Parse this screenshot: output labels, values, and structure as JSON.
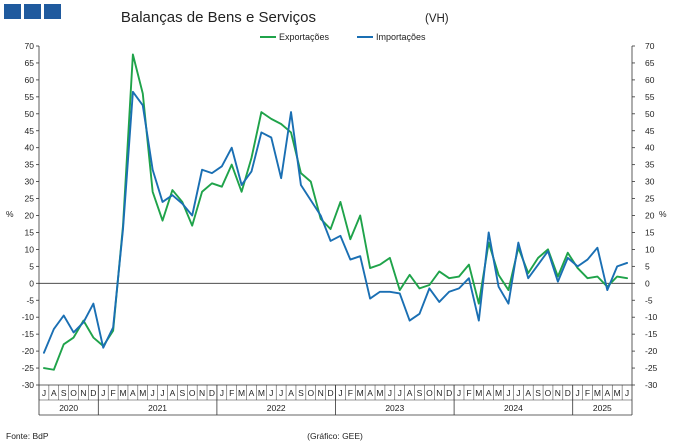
{
  "logo": {
    "color": "#1f5a9e"
  },
  "chart_data": {
    "type": "line",
    "title": "Balanças de Bens e Serviços",
    "subtitle": "(VH)",
    "ylabel_left": "%",
    "ylabel_right": "%",
    "ylim": [
      -30,
      70
    ],
    "yticks": [
      70,
      65,
      60,
      55,
      50,
      45,
      40,
      35,
      30,
      25,
      20,
      15,
      10,
      5,
      0,
      -5,
      -10,
      -15,
      -20,
      -25,
      -30
    ],
    "legend_position": "top",
    "grid": false,
    "months": [
      "J",
      "A",
      "S",
      "O",
      "N",
      "D",
      "J",
      "F",
      "M",
      "A",
      "M",
      "J",
      "J",
      "A",
      "S",
      "O",
      "N",
      "D",
      "J",
      "F",
      "M",
      "A",
      "M",
      "J",
      "J",
      "A",
      "S",
      "O",
      "N",
      "D",
      "J",
      "F",
      "M",
      "A",
      "M",
      "J",
      "J",
      "A",
      "S",
      "O",
      "N",
      "D",
      "J",
      "F",
      "M",
      "A",
      "M",
      "J",
      "J",
      "A",
      "S",
      "O",
      "N",
      "D",
      "J",
      "F",
      "M",
      "A",
      "M",
      "J"
    ],
    "years": [
      {
        "label": "2020",
        "start": 0,
        "count": 6
      },
      {
        "label": "2021",
        "start": 6,
        "count": 12
      },
      {
        "label": "2022",
        "start": 18,
        "count": 12
      },
      {
        "label": "2023",
        "start": 30,
        "count": 12
      },
      {
        "label": "2024",
        "start": 42,
        "count": 12
      },
      {
        "label": "2025",
        "start": 54,
        "count": 6
      }
    ],
    "x": [
      "2020-07",
      "2020-08",
      "2020-09",
      "2020-10",
      "2020-11",
      "2020-12",
      "2021-01",
      "2021-02",
      "2021-03",
      "2021-04",
      "2021-05",
      "2021-06",
      "2021-07",
      "2021-08",
      "2021-09",
      "2021-10",
      "2021-11",
      "2021-12",
      "2022-01",
      "2022-02",
      "2022-03",
      "2022-04",
      "2022-05",
      "2022-06",
      "2022-07",
      "2022-08",
      "2022-09",
      "2022-10",
      "2022-11",
      "2022-12",
      "2023-01",
      "2023-02",
      "2023-03",
      "2023-04",
      "2023-05",
      "2023-06",
      "2023-07",
      "2023-08",
      "2023-09",
      "2023-10",
      "2023-11",
      "2023-12",
      "2024-01",
      "2024-02",
      "2024-03",
      "2024-04",
      "2024-05",
      "2024-06",
      "2024-07",
      "2024-08",
      "2024-09",
      "2024-10",
      "2024-11",
      "2024-12",
      "2025-01",
      "2025-02",
      "2025-03",
      "2025-04",
      "2025-05",
      "2025-06"
    ],
    "series": [
      {
        "name": "Exportações",
        "color": "#1fa34a",
        "values": [
          -25,
          -25.5,
          -18,
          -16,
          -11,
          -16,
          -18.5,
          -14,
          17,
          67.5,
          56,
          27,
          18.5,
          27.5,
          24,
          17,
          27,
          29.5,
          28.5,
          35,
          27,
          37,
          50.5,
          48.5,
          47,
          44.5,
          32.5,
          30,
          19,
          16,
          24,
          13,
          20,
          4.5,
          5.5,
          7.5,
          -2,
          2.5,
          -1.5,
          -0.5,
          3.5,
          1.5,
          2,
          5.5,
          -6,
          12,
          2.5,
          -2,
          10.5,
          3,
          7.5,
          10,
          2,
          9,
          4.5,
          1.5,
          2,
          -1,
          2,
          1.5
        ]
      },
      {
        "name": "Importações",
        "color": "#1a6fb3",
        "values": [
          -20.5,
          -13.5,
          -9.5,
          -14.5,
          -11.5,
          -6,
          -19,
          -13,
          16,
          56.5,
          52.5,
          33.5,
          24,
          26,
          23.5,
          20,
          33.5,
          32.5,
          34.5,
          40,
          29,
          33,
          44.5,
          43,
          31,
          50.5,
          29,
          24.5,
          20,
          12.5,
          14,
          7,
          8,
          -4.5,
          -2.5,
          -2.5,
          -3,
          -11,
          -9,
          -1.5,
          -5.5,
          -2.5,
          -1.5,
          1.5,
          -11,
          15,
          -1,
          -6,
          12,
          1.5,
          5.5,
          9.5,
          0.5,
          7.5,
          5,
          7,
          10.5,
          -2,
          5,
          6
        ]
      }
    ],
    "footer_left": "Fonte: BdP",
    "footer_center": "(Gráfico: GEE)"
  }
}
